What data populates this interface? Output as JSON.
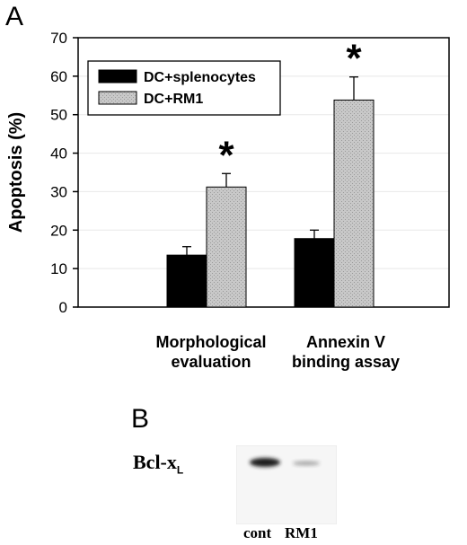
{
  "panel_a": {
    "letter": "A"
  },
  "panel_b": {
    "letter": "B",
    "protein_label": "Bcl-x",
    "protein_subscript": "L",
    "lanes": [
      "cont",
      "RM1"
    ],
    "band_intensity": [
      1.0,
      0.35
    ]
  },
  "colors": {
    "series1": "#000000",
    "series2": "#c8c8c8",
    "axes": "#000000"
  },
  "chart_data": {
    "type": "bar",
    "ylabel": "Apoptosis (%)",
    "ylim": [
      0,
      70
    ],
    "yticks": [
      0,
      10,
      20,
      30,
      40,
      50,
      60,
      70
    ],
    "categories": [
      [
        "Morphological",
        "evaluation"
      ],
      [
        "Annexin V",
        "binding assay"
      ]
    ],
    "series": [
      {
        "name": "DC+splenocytes",
        "values": [
          13.5,
          17.8
        ],
        "errors": [
          2.2,
          2.2
        ]
      },
      {
        "name": "DC+RM1",
        "values": [
          31.2,
          53.8
        ],
        "errors": [
          3.5,
          6.0
        ]
      }
    ],
    "significance_marker": "*",
    "significant_series": "DC+RM1",
    "legend": "top-left"
  }
}
